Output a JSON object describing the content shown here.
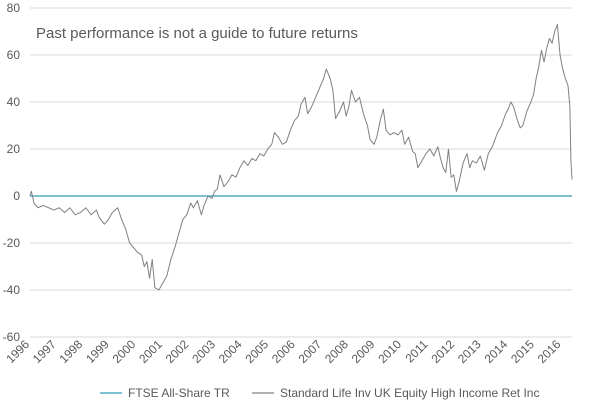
{
  "chart_data": {
    "type": "line",
    "title": "",
    "annotation": "Past performance is not a guide to future returns",
    "xlabel": "",
    "ylabel": "",
    "x_ticks": [
      "1996",
      "1997",
      "1998",
      "1999",
      "2000",
      "2001",
      "2002",
      "2003",
      "2004",
      "2005",
      "2006",
      "2007",
      "2008",
      "2009",
      "2010",
      "2011",
      "2012",
      "2013",
      "2014",
      "2015",
      "2016"
    ],
    "y_ticks": [
      80,
      60,
      40,
      20,
      0,
      -20,
      -40,
      -60
    ],
    "ylim": [
      -60,
      80
    ],
    "xlim": [
      1996,
      2016.4
    ],
    "grid": "horizontal",
    "legend_position": "bottom",
    "series": [
      {
        "name": "FTSE All-Share TR",
        "color": "#2e9cb8",
        "points": [
          [
            1996.0,
            0
          ],
          [
            2016.4,
            0
          ]
        ]
      },
      {
        "name": "Standard Life Inv UK Equity High Income Ret Inc",
        "color": "#808080",
        "points": [
          [
            1996.0,
            0
          ],
          [
            1996.05,
            2
          ],
          [
            1996.15,
            -3
          ],
          [
            1996.3,
            -5
          ],
          [
            1996.5,
            -4
          ],
          [
            1996.7,
            -5
          ],
          [
            1996.9,
            -6
          ],
          [
            1997.1,
            -5
          ],
          [
            1997.3,
            -7
          ],
          [
            1997.5,
            -5
          ],
          [
            1997.7,
            -8
          ],
          [
            1997.9,
            -7
          ],
          [
            1998.1,
            -5
          ],
          [
            1998.3,
            -8
          ],
          [
            1998.5,
            -6
          ],
          [
            1998.6,
            -9
          ],
          [
            1998.8,
            -12
          ],
          [
            1998.95,
            -10
          ],
          [
            1999.1,
            -7
          ],
          [
            1999.3,
            -5
          ],
          [
            1999.45,
            -10
          ],
          [
            1999.6,
            -14
          ],
          [
            1999.75,
            -20
          ],
          [
            1999.9,
            -22
          ],
          [
            2000.05,
            -24
          ],
          [
            2000.2,
            -25
          ],
          [
            2000.3,
            -30
          ],
          [
            2000.4,
            -28
          ],
          [
            2000.5,
            -35
          ],
          [
            2000.6,
            -27
          ],
          [
            2000.7,
            -39
          ],
          [
            2000.85,
            -40
          ],
          [
            2001.0,
            -37
          ],
          [
            2001.15,
            -34
          ],
          [
            2001.3,
            -27
          ],
          [
            2001.45,
            -22
          ],
          [
            2001.6,
            -16
          ],
          [
            2001.75,
            -10
          ],
          [
            2001.9,
            -8
          ],
          [
            2002.05,
            -3
          ],
          [
            2002.15,
            -5
          ],
          [
            2002.3,
            -2
          ],
          [
            2002.45,
            -8
          ],
          [
            2002.55,
            -4
          ],
          [
            2002.7,
            0
          ],
          [
            2002.85,
            -1
          ],
          [
            2002.95,
            2
          ],
          [
            2003.05,
            3
          ],
          [
            2003.15,
            9
          ],
          [
            2003.3,
            4
          ],
          [
            2003.45,
            6
          ],
          [
            2003.6,
            9
          ],
          [
            2003.75,
            8
          ],
          [
            2003.9,
            12
          ],
          [
            2004.05,
            15
          ],
          [
            2004.2,
            13
          ],
          [
            2004.35,
            16
          ],
          [
            2004.5,
            15
          ],
          [
            2004.65,
            18
          ],
          [
            2004.8,
            17
          ],
          [
            2004.95,
            20
          ],
          [
            2005.1,
            22
          ],
          [
            2005.2,
            27
          ],
          [
            2005.35,
            25
          ],
          [
            2005.5,
            22
          ],
          [
            2005.65,
            23
          ],
          [
            2005.8,
            28
          ],
          [
            2005.95,
            32
          ],
          [
            2006.1,
            34
          ],
          [
            2006.2,
            39
          ],
          [
            2006.35,
            42
          ],
          [
            2006.45,
            35
          ],
          [
            2006.6,
            38
          ],
          [
            2006.75,
            42
          ],
          [
            2006.9,
            46
          ],
          [
            2007.05,
            50
          ],
          [
            2007.15,
            54
          ],
          [
            2007.3,
            50
          ],
          [
            2007.4,
            45
          ],
          [
            2007.5,
            33
          ],
          [
            2007.65,
            36
          ],
          [
            2007.8,
            40
          ],
          [
            2007.9,
            34
          ],
          [
            2008.0,
            38
          ],
          [
            2008.1,
            45
          ],
          [
            2008.25,
            40
          ],
          [
            2008.4,
            42
          ],
          [
            2008.55,
            35
          ],
          [
            2008.7,
            30
          ],
          [
            2008.8,
            24
          ],
          [
            2008.95,
            22
          ],
          [
            2009.05,
            25
          ],
          [
            2009.2,
            33
          ],
          [
            2009.3,
            37
          ],
          [
            2009.4,
            28
          ],
          [
            2009.55,
            26
          ],
          [
            2009.7,
            27
          ],
          [
            2009.85,
            26
          ],
          [
            2010.0,
            28
          ],
          [
            2010.1,
            22
          ],
          [
            2010.25,
            25
          ],
          [
            2010.4,
            19
          ],
          [
            2010.5,
            18
          ],
          [
            2010.6,
            12
          ],
          [
            2010.75,
            15
          ],
          [
            2010.9,
            18
          ],
          [
            2011.05,
            20
          ],
          [
            2011.2,
            17
          ],
          [
            2011.35,
            21
          ],
          [
            2011.45,
            16
          ],
          [
            2011.55,
            12
          ],
          [
            2011.65,
            10
          ],
          [
            2011.75,
            20
          ],
          [
            2011.85,
            8
          ],
          [
            2011.95,
            9
          ],
          [
            2012.05,
            2
          ],
          [
            2012.15,
            6
          ],
          [
            2012.3,
            14
          ],
          [
            2012.45,
            18
          ],
          [
            2012.55,
            12
          ],
          [
            2012.65,
            15
          ],
          [
            2012.8,
            14
          ],
          [
            2012.95,
            17
          ],
          [
            2013.1,
            11
          ],
          [
            2013.25,
            18
          ],
          [
            2013.4,
            21
          ],
          [
            2013.5,
            24
          ],
          [
            2013.6,
            27
          ],
          [
            2013.75,
            30
          ],
          [
            2013.9,
            35
          ],
          [
            2014.0,
            37
          ],
          [
            2014.1,
            40
          ],
          [
            2014.2,
            38
          ],
          [
            2014.35,
            32
          ],
          [
            2014.45,
            29
          ],
          [
            2014.55,
            30
          ],
          [
            2014.7,
            36
          ],
          [
            2014.85,
            40
          ],
          [
            2014.95,
            43
          ],
          [
            2015.05,
            50
          ],
          [
            2015.15,
            55
          ],
          [
            2015.25,
            62
          ],
          [
            2015.35,
            57
          ],
          [
            2015.45,
            63
          ],
          [
            2015.55,
            67
          ],
          [
            2015.65,
            65
          ],
          [
            2015.75,
            70
          ],
          [
            2015.85,
            73
          ],
          [
            2015.95,
            60
          ],
          [
            2016.05,
            54
          ],
          [
            2016.15,
            50
          ],
          [
            2016.25,
            47
          ],
          [
            2016.32,
            38
          ],
          [
            2016.36,
            15
          ],
          [
            2016.4,
            7
          ]
        ]
      }
    ]
  }
}
